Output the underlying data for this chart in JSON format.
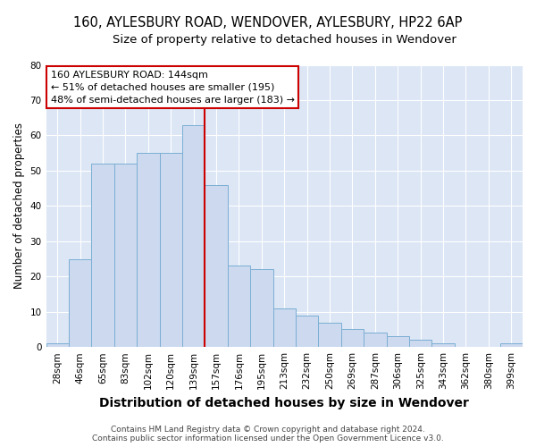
{
  "title": "160, AYLESBURY ROAD, WENDOVER, AYLESBURY, HP22 6AP",
  "subtitle": "Size of property relative to detached houses in Wendover",
  "xlabel_bottom": "Distribution of detached houses by size in Wendover",
  "ylabel": "Number of detached properties",
  "footer_line1": "Contains HM Land Registry data © Crown copyright and database right 2024.",
  "footer_line2": "Contains public sector information licensed under the Open Government Licence v3.0.",
  "categories": [
    "28sqm",
    "46sqm",
    "65sqm",
    "83sqm",
    "102sqm",
    "120sqm",
    "139sqm",
    "157sqm",
    "176sqm",
    "195sqm",
    "213sqm",
    "232sqm",
    "250sqm",
    "269sqm",
    "287sqm",
    "306sqm",
    "325sqm",
    "343sqm",
    "362sqm",
    "380sqm",
    "399sqm"
  ],
  "values": [
    1,
    25,
    52,
    52,
    55,
    55,
    63,
    46,
    23,
    22,
    11,
    9,
    7,
    5,
    4,
    3,
    2,
    1,
    0,
    0,
    1
  ],
  "bar_color": "#ccd9ee",
  "bar_edge_color": "#7bafd4",
  "vline_color": "#cc0000",
  "annotation_text": "160 AYLESBURY ROAD: 144sqm\n← 51% of detached houses are smaller (195)\n48% of semi-detached houses are larger (183) →",
  "annotation_box_color": "#cc0000",
  "ylim": [
    0,
    80
  ],
  "yticks": [
    0,
    10,
    20,
    30,
    40,
    50,
    60,
    70,
    80
  ],
  "fig_bg_color": "#ffffff",
  "plot_bg_color": "#dce6f5",
  "grid_color": "#ffffff",
  "title_fontsize": 10.5,
  "subtitle_fontsize": 9.5,
  "ylabel_fontsize": 8.5,
  "xlabel_fontsize": 10,
  "tick_fontsize": 7.5,
  "footer_fontsize": 6.5,
  "annotation_fontsize": 8.0
}
